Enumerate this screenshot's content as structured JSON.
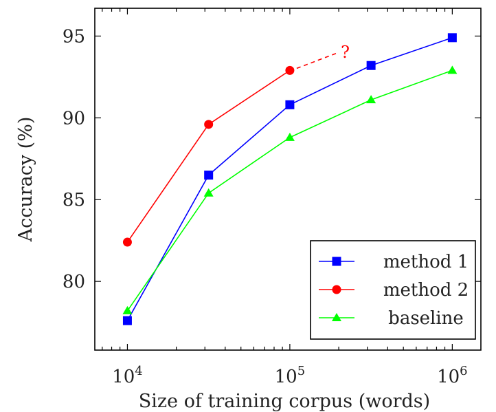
{
  "chart_data": {
    "type": "line",
    "xlabel": "Size of training corpus (words)",
    "ylabel": "Accuracy (%)",
    "xscale": "log",
    "xlim": [
      6300,
      1500000
    ],
    "ylim": [
      75.8,
      96.7
    ],
    "x_ticks": [
      {
        "value": 10000,
        "base": "10",
        "exp": "4"
      },
      {
        "value": 100000,
        "base": "10",
        "exp": "5"
      },
      {
        "value": 1000000,
        "base": "10",
        "exp": "6"
      }
    ],
    "y_ticks": [
      80,
      85,
      90,
      95
    ],
    "grid": false,
    "legend_position": "bottom-right",
    "series": [
      {
        "name": "method 1",
        "color": "#0000ff",
        "marker": "square",
        "x": [
          10000,
          31623,
          100000,
          316228,
          1000000
        ],
        "y": [
          77.6,
          86.5,
          90.8,
          93.2,
          94.9
        ]
      },
      {
        "name": "method 2",
        "color": "#ff0000",
        "marker": "circle",
        "x": [
          10000,
          31623,
          100000
        ],
        "y": [
          82.4,
          89.6,
          92.9
        ]
      },
      {
        "name": "baseline",
        "color": "#00ff00",
        "marker": "triangle",
        "x": [
          10000,
          31623,
          100000,
          316228,
          1000000
        ],
        "y": [
          78.2,
          85.4,
          88.8,
          91.1,
          92.9
        ]
      }
    ],
    "annotations": [
      {
        "text": "?",
        "color": "#ff0000",
        "style": "dashed",
        "from": [
          100000,
          92.9
        ],
        "to": [
          200000,
          94.0
        ]
      }
    ]
  }
}
